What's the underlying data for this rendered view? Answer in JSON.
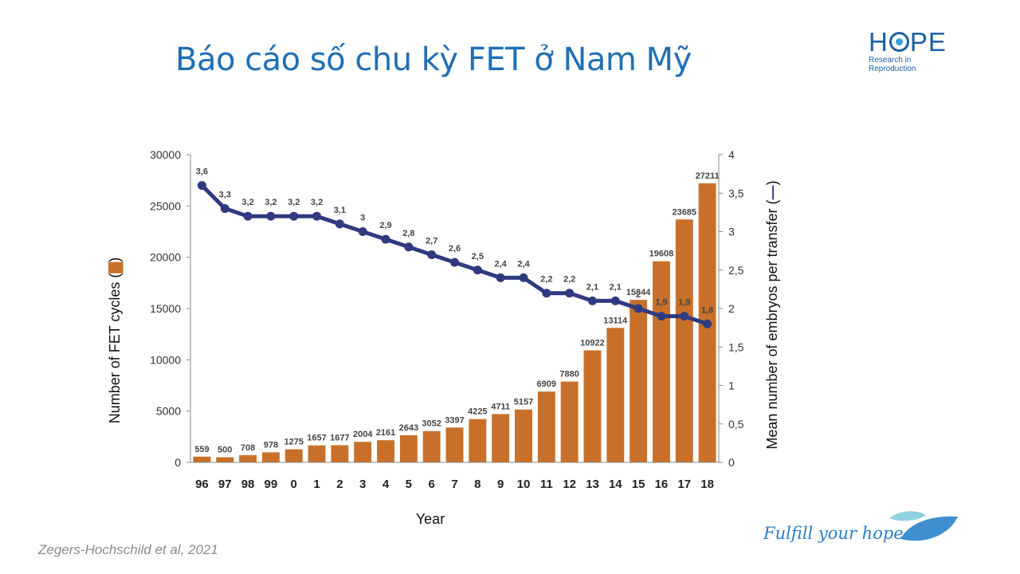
{
  "slide": {
    "title": "Báo cáo số chu kỳ FET ở Nam Mỹ",
    "logo_main": "HOPE",
    "logo_sub": "Research in Reproduction",
    "citation": "Zegers-Hochschild et al, 2021",
    "tagline": "Fulfill your hope"
  },
  "chart_data": {
    "type": "bar",
    "categories": [
      "96",
      "97",
      "98",
      "99",
      "0",
      "1",
      "2",
      "3",
      "4",
      "5",
      "6",
      "7",
      "8",
      "9",
      "10",
      "11",
      "12",
      "13",
      "14",
      "15",
      "16",
      "17",
      "18"
    ],
    "series": [
      {
        "type": "bar",
        "axis": "left",
        "values": [
          559,
          500,
          708,
          978,
          1275,
          1657,
          1677,
          2004,
          2161,
          2643,
          3052,
          3397,
          4225,
          4711,
          5157,
          6909,
          7880,
          10922,
          13114,
          15844,
          19608,
          23685,
          27211
        ],
        "color": "#c8702a"
      },
      {
        "type": "line",
        "axis": "right",
        "values": [
          3.6,
          3.3,
          3.2,
          3.2,
          3.2,
          3.2,
          3.1,
          3.0,
          2.9,
          2.8,
          2.7,
          2.6,
          2.5,
          2.4,
          2.4,
          2.2,
          2.2,
          2.1,
          2.1,
          2.0,
          1.9,
          1.9,
          1.8
        ],
        "labels": [
          "3,6",
          "3,3",
          "3,2",
          "3,2",
          "3,2",
          "3,2",
          "3,1",
          "3",
          "2,9",
          "2,8",
          "2,7",
          "2,6",
          "2,5",
          "2,4",
          "2,4",
          "2,2",
          "2,2",
          "2,1",
          "2,1",
          "2",
          "1,9",
          "1,9",
          "1,8"
        ],
        "color": "#2f3a80"
      }
    ],
    "xlabel": "Year",
    "ylabel": "Number of FET cycles (",
    "ylabel_right": "Mean number of embryos per transfer (",
    "ylim": [
      0,
      30000
    ],
    "ylim_right": [
      0,
      4
    ],
    "yticks": [
      "0",
      "5000",
      "10000",
      "15000",
      "20000",
      "25000",
      "30000"
    ],
    "yticks_right": [
      "0",
      "0,5",
      "1",
      "1,5",
      "2",
      "2,5",
      "3",
      "3,5",
      "4"
    ],
    "grid": false,
    "legend": "none"
  }
}
